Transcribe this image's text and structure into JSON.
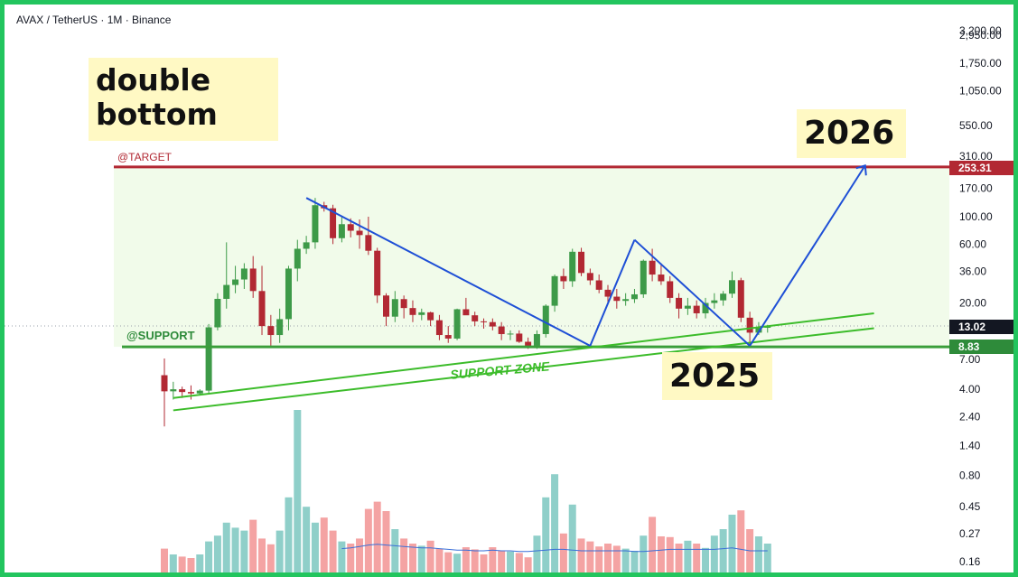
{
  "header": {
    "symbol": "AVAX / TetherUS · 1M · Binance"
  },
  "notes": {
    "pattern": "double\nbottom",
    "year_target": "2026",
    "year_bottom": "2025"
  },
  "levels": {
    "target_label": "@TARGET",
    "target_value": "253.31",
    "support_label": "@SUPPORT",
    "support_value": "8.83",
    "current_value": "13.02",
    "support_zone_label": "SUPPORT ZONE"
  },
  "colors": {
    "up": "#3d9a48",
    "down": "#b22833",
    "vol_up": "#8fcfc9",
    "vol_down": "#f4a3a3",
    "trend": "#1e4fd6",
    "zone": "#3cbc2a",
    "frame": "#22c55e"
  },
  "chart_data": {
    "type": "candlestick",
    "scale": "log",
    "y_ticks": [
      "3,200.00",
      "2,950.00",
      "1,750.00",
      "1,050.00",
      "550.00",
      "310.00",
      "170.00",
      "100.00",
      "60.00",
      "36.00",
      "20.00",
      "7.00",
      "4.00",
      "2.40",
      "1.40",
      "0.80",
      "0.45",
      "0.27",
      "0.16"
    ],
    "candles": [
      [
        5.2,
        7.1,
        2.0,
        3.85
      ],
      [
        3.85,
        4.6,
        3.3,
        4.0
      ],
      [
        4.0,
        4.2,
        3.4,
        3.8
      ],
      [
        3.8,
        4.3,
        3.3,
        3.7
      ],
      [
        3.7,
        4.0,
        3.6,
        3.9
      ],
      [
        3.9,
        13.5,
        3.7,
        12.7
      ],
      [
        12.7,
        24,
        12,
        21.6
      ],
      [
        21.6,
        62,
        18,
        28
      ],
      [
        28,
        40,
        24,
        31
      ],
      [
        31,
        42,
        26,
        38
      ],
      [
        38,
        48,
        22,
        25
      ],
      [
        25,
        40,
        11,
        13
      ],
      [
        13,
        16,
        9,
        11
      ],
      [
        11,
        18,
        9.5,
        14.8
      ],
      [
        14.8,
        40,
        12,
        38
      ],
      [
        38,
        65,
        30,
        55
      ],
      [
        55,
        70,
        50,
        62
      ],
      [
        62,
        142,
        55,
        124
      ],
      [
        124,
        132,
        110,
        117
      ],
      [
        117,
        125,
        60,
        67
      ],
      [
        67,
        100,
        62,
        87
      ],
      [
        87,
        97,
        68,
        77
      ],
      [
        77,
        95,
        55,
        71
      ],
      [
        71,
        100,
        49,
        53
      ],
      [
        53,
        56,
        20,
        23
      ],
      [
        23,
        24,
        13,
        15.5
      ],
      [
        15.5,
        25,
        14,
        21.5
      ],
      [
        21.5,
        23,
        15,
        18.2
      ],
      [
        18.2,
        21,
        14,
        16
      ],
      [
        16,
        18,
        14.5,
        16.8
      ],
      [
        16.8,
        17,
        13,
        14.5
      ],
      [
        14.5,
        16,
        10,
        11
      ],
      [
        11,
        13,
        9.5,
        10.3
      ],
      [
        10.3,
        18,
        10,
        17.8
      ],
      [
        17.8,
        22,
        16,
        15.9
      ],
      [
        15.9,
        17,
        13,
        14.2
      ],
      [
        14.2,
        15,
        12.4,
        14.0
      ],
      [
        14,
        15,
        12,
        12.9
      ],
      [
        12.9,
        14,
        10,
        11.2
      ],
      [
        11.2,
        12,
        10,
        11.3
      ],
      [
        11.3,
        12,
        9.5,
        9.7
      ],
      [
        9.7,
        10.5,
        8.5,
        9.0
      ],
      [
        9.0,
        12,
        8.5,
        11.2
      ],
      [
        11.2,
        19.5,
        10.5,
        19
      ],
      [
        19,
        34,
        17,
        33
      ],
      [
        33,
        38,
        26,
        30
      ],
      [
        30,
        55,
        27,
        52
      ],
      [
        52,
        56,
        33,
        35
      ],
      [
        35,
        38,
        28,
        30.5
      ],
      [
        30.5,
        34,
        24,
        25.6
      ],
      [
        25.6,
        28,
        20,
        22.5
      ],
      [
        22.5,
        26,
        18,
        20.8
      ],
      [
        20.8,
        24,
        19,
        21.5
      ],
      [
        21.5,
        26,
        20,
        23.5
      ],
      [
        23.5,
        45,
        22,
        44
      ],
      [
        44,
        55,
        30,
        34
      ],
      [
        34,
        42,
        28,
        30
      ],
      [
        30,
        33,
        20,
        22
      ],
      [
        22,
        24,
        15,
        18
      ],
      [
        18,
        22,
        16,
        19
      ],
      [
        19,
        21,
        15,
        16.5
      ],
      [
        16.5,
        22,
        15,
        20
      ],
      [
        20,
        24,
        18,
        21
      ],
      [
        21,
        25,
        19,
        23.8
      ],
      [
        23.8,
        36,
        22,
        30.6
      ],
      [
        30.6,
        32,
        14,
        15.2
      ],
      [
        15.2,
        17,
        9.0,
        11.5
      ],
      [
        11.5,
        14,
        11,
        12.6
      ],
      [
        12.6,
        13.3,
        11.5,
        13.02
      ]
    ],
    "volume": [
      0.33,
      0.25,
      0.22,
      0.2,
      0.25,
      0.43,
      0.51,
      0.69,
      0.62,
      0.58,
      0.73,
      0.47,
      0.39,
      0.58,
      1.04,
      2.25,
      0.91,
      0.69,
      0.76,
      0.58,
      0.43,
      0.4,
      0.47,
      0.88,
      0.98,
      0.85,
      0.6,
      0.47,
      0.4,
      0.37,
      0.44,
      0.33,
      0.28,
      0.26,
      0.35,
      0.32,
      0.25,
      0.35,
      0.3,
      0.29,
      0.27,
      0.21,
      0.51,
      1.04,
      1.36,
      0.54,
      0.94,
      0.47,
      0.43,
      0.36,
      0.4,
      0.37,
      0.33,
      0.3,
      0.51,
      0.77,
      0.5,
      0.49,
      0.4,
      0.44,
      0.4,
      0.34,
      0.51,
      0.6,
      0.8,
      0.86,
      0.6,
      0.5,
      0.4
    ],
    "volume_ma": [
      null,
      null,
      null,
      null,
      null,
      null,
      null,
      null,
      null,
      null,
      null,
      null,
      null,
      null,
      null,
      null,
      null,
      null,
      null,
      null,
      0.33,
      0.34,
      0.36,
      0.38,
      0.39,
      0.38,
      0.37,
      0.36,
      0.35,
      0.34,
      0.34,
      0.33,
      0.32,
      0.31,
      0.31,
      0.3,
      0.3,
      0.31,
      0.3,
      0.3,
      0.29,
      0.29,
      0.3,
      0.31,
      0.32,
      0.32,
      0.31,
      0.3,
      0.3,
      0.3,
      0.3,
      0.3,
      0.3,
      0.29,
      0.29,
      0.3,
      0.31,
      0.32,
      0.32,
      0.32,
      0.32,
      0.32,
      0.32,
      0.33,
      0.34,
      0.32,
      0.3,
      0.3,
      0.3
    ],
    "trend_lines": [
      [
        [
          16,
          142
        ],
        [
          48,
          9.0
        ]
      ],
      [
        [
          48,
          9.0
        ],
        [
          53,
          65
        ]
      ],
      [
        [
          53,
          65
        ],
        [
          66,
          9.0
        ]
      ],
      [
        [
          66,
          9.0
        ],
        [
          79,
          260
        ]
      ]
    ],
    "support_channel": [
      [
        [
          1,
          3.4
        ],
        [
          80,
          16.5
        ]
      ],
      [
        [
          1,
          2.7
        ],
        [
          80,
          12.5
        ]
      ]
    ],
    "target_level": 253.31,
    "support_level": 8.83,
    "current_price": 13.02
  }
}
